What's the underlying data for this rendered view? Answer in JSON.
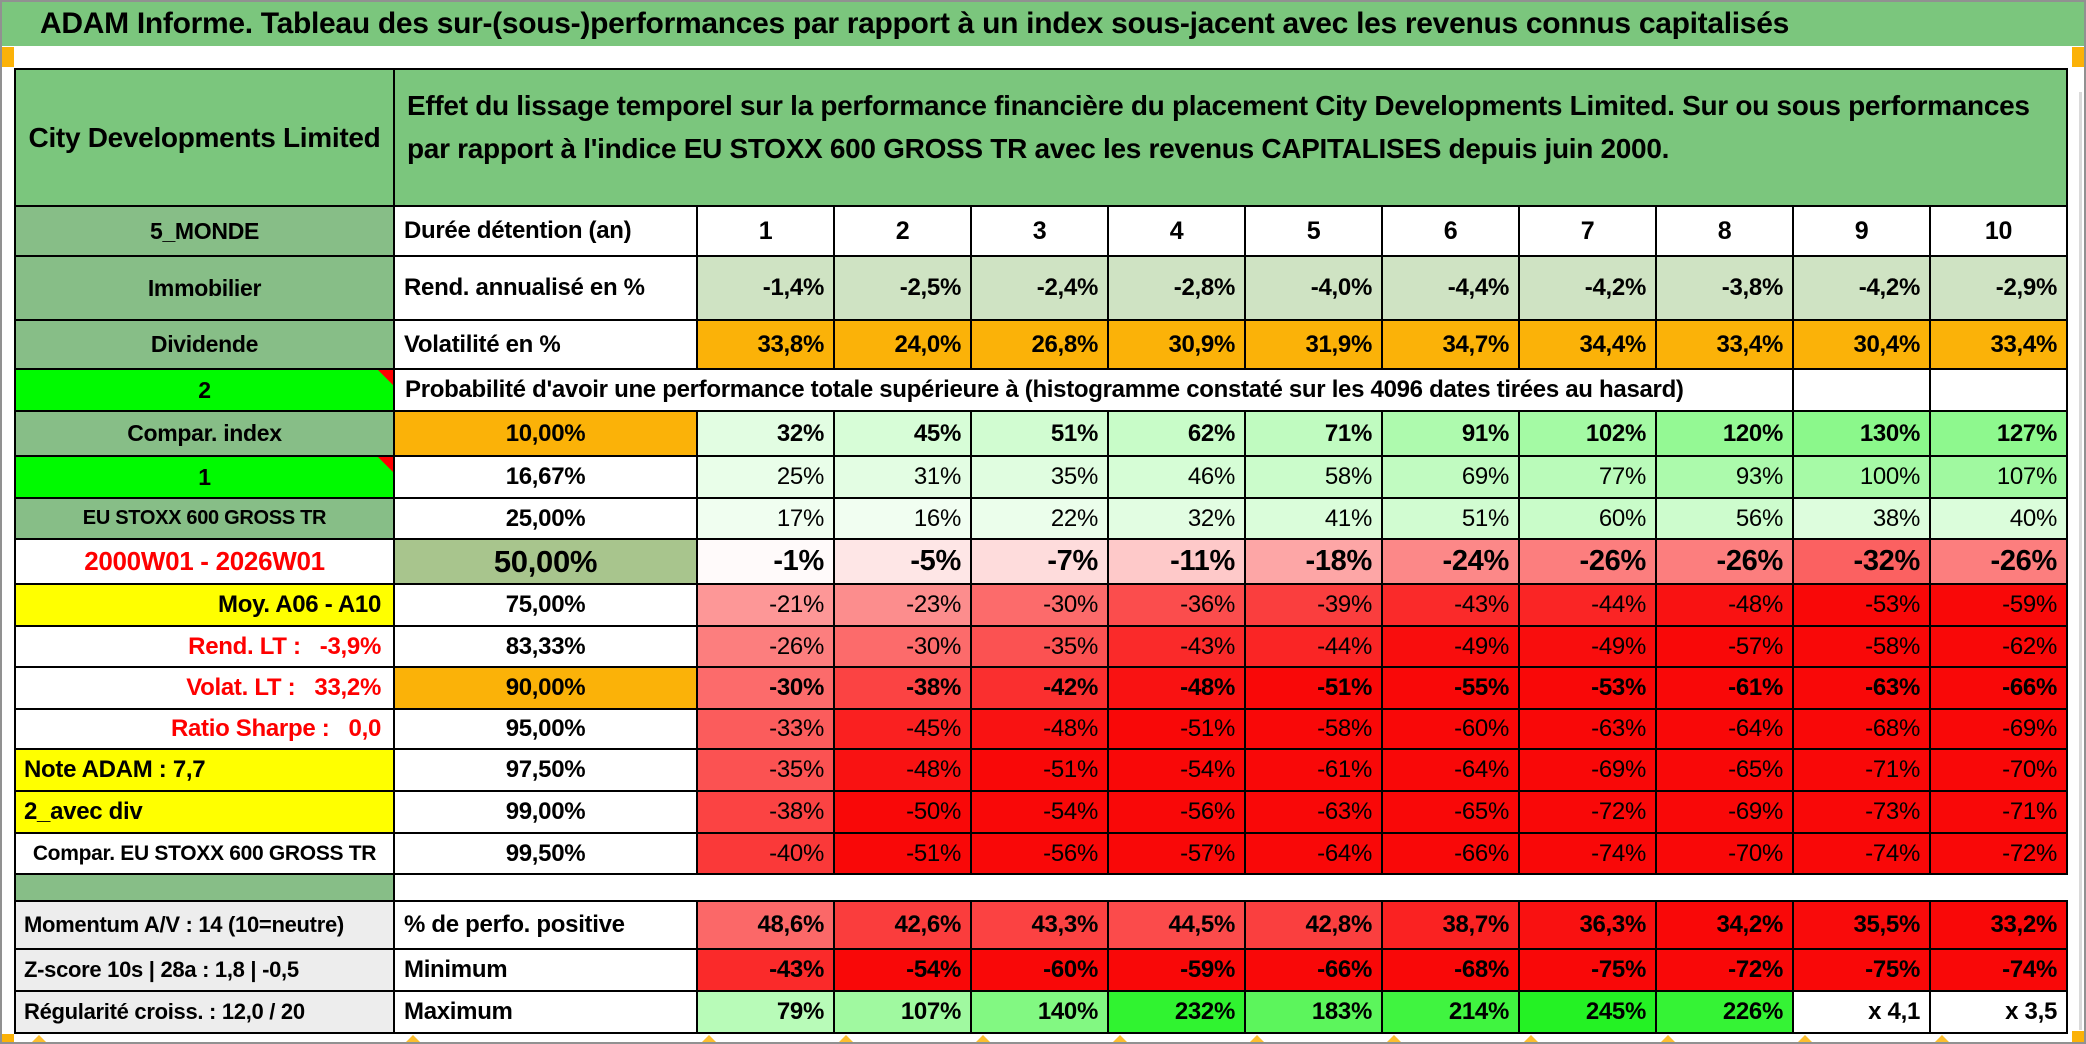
{
  "title": "ADAM Informe. Tableau des sur-(sous-)performances par rapport à un index sous-jacent avec les revenus connus capitalisés",
  "header": {
    "company": "City Developments Limited",
    "description": "Effet du lissage temporel sur la performance financière du placement City Developments Limited. Sur ou sous performances par rapport à l'indice EU STOXX 600 GROSS TR avec les revenus CAPITALISES depuis juin 2000."
  },
  "columns": [
    "1",
    "2",
    "3",
    "4",
    "5",
    "6",
    "7",
    "8",
    "9",
    "10"
  ],
  "rows": {
    "duration": {
      "a": "5_MONDE",
      "b": "Durée détention (an)"
    },
    "rend_annualise": {
      "a": "Immobilier",
      "b": "Rend. annualisé en %",
      "display": [
        "-1,4%",
        "-2,5%",
        "-2,4%",
        "-2,8%",
        "-4,0%",
        "-4,4%",
        "-4,2%",
        "-3,8%",
        "-4,2%",
        "-2,9%"
      ]
    },
    "volatilite": {
      "a": "Dividende",
      "b": "Volatilité en %",
      "display": [
        "33,8%",
        "24,0%",
        "26,8%",
        "30,9%",
        "31,9%",
        "34,7%",
        "34,4%",
        "33,4%",
        "30,4%",
        "33,4%"
      ]
    },
    "probabilite": {
      "a": "2",
      "text": "Probabilité d'avoir une performance totale supérieure à (histogramme constaté sur les 4096 dates tirées au hasard)"
    },
    "percentiles": [
      {
        "id": "p10",
        "a": "Compar. index",
        "pct": "10,00%",
        "values": [
          32,
          45,
          51,
          62,
          71,
          91,
          102,
          120,
          130,
          127
        ]
      },
      {
        "id": "p16",
        "a": "1",
        "pct": "16,67%",
        "values": [
          25,
          31,
          35,
          46,
          58,
          69,
          77,
          93,
          100,
          107
        ]
      },
      {
        "id": "p25",
        "a": "EU STOXX 600 GROSS TR",
        "pct": "25,00%",
        "values": [
          17,
          16,
          22,
          32,
          41,
          51,
          60,
          56,
          38,
          40
        ]
      },
      {
        "id": "p50",
        "a": "2000W01 - 2026W01",
        "pct": "50,00%",
        "values": [
          -1,
          -5,
          -7,
          -11,
          -18,
          -24,
          -26,
          -26,
          -32,
          -26
        ]
      },
      {
        "id": "p75",
        "a": "Moy. A06 - A10",
        "pct": "75,00%",
        "values": [
          -21,
          -23,
          -30,
          -36,
          -39,
          -43,
          -44,
          -48,
          -53,
          -59
        ]
      },
      {
        "id": "p83",
        "a": "Rend. LT :   -3,9%",
        "pct": "83,33%",
        "values": [
          -26,
          -30,
          -35,
          -43,
          -44,
          -49,
          -49,
          -57,
          -58,
          -62
        ]
      },
      {
        "id": "p90",
        "a": "Volat. LT :   33,2%",
        "pct": "90,00%",
        "values": [
          -30,
          -38,
          -42,
          -48,
          -51,
          -55,
          -53,
          -61,
          -63,
          -66
        ]
      },
      {
        "id": "p95",
        "a": "Ratio Sharpe :   0,0",
        "pct": "95,00%",
        "values": [
          -33,
          -45,
          -48,
          -51,
          -58,
          -60,
          -63,
          -64,
          -68,
          -69
        ]
      },
      {
        "id": "p975",
        "a": "Note ADAM : 7,7",
        "pct": "97,50%",
        "values": [
          -35,
          -48,
          -51,
          -54,
          -61,
          -64,
          -69,
          -65,
          -71,
          -70
        ]
      },
      {
        "id": "p99",
        "a": "2_avec div",
        "pct": "99,00%",
        "values": [
          -38,
          -50,
          -54,
          -56,
          -63,
          -65,
          -72,
          -69,
          -73,
          -71
        ]
      },
      {
        "id": "p995",
        "a": "Compar. EU STOXX 600 GROSS TR",
        "pct": "99,50%",
        "values": [
          -40,
          -51,
          -56,
          -57,
          -64,
          -66,
          -74,
          -70,
          -74,
          -72
        ]
      }
    ],
    "bottom": [
      {
        "id": "perfo",
        "a": "Momentum A/V : 14 (10=neutre)",
        "b": "% de perfo. positive",
        "display": [
          "48,6%",
          "42,6%",
          "43,3%",
          "44,5%",
          "42,8%",
          "38,7%",
          "36,3%",
          "34,2%",
          "35,5%",
          "33,2%"
        ],
        "values": [
          48.6,
          42.6,
          43.3,
          44.5,
          42.8,
          38.7,
          36.3,
          34.2,
          35.5,
          33.2
        ]
      },
      {
        "id": "minimum",
        "a": "Z-score 10s | 28a : 1,8 | -0,5",
        "b": "Minimum",
        "display": [
          "-43%",
          "-54%",
          "-60%",
          "-59%",
          "-66%",
          "-68%",
          "-75%",
          "-72%",
          "-75%",
          "-74%"
        ],
        "values": [
          -43,
          -54,
          -60,
          -59,
          -66,
          -68,
          -75,
          -72,
          -75,
          -74
        ]
      },
      {
        "id": "maximum",
        "a": "Régularité croiss. : 12,0 / 20",
        "b": "Maximum",
        "display": [
          "79%",
          "107%",
          "140%",
          "232%",
          "183%",
          "214%",
          "245%",
          "226%",
          "x 4,1",
          "x 3,5"
        ],
        "values": [
          79,
          107,
          140,
          232,
          183,
          214,
          245,
          226,
          null,
          null
        ]
      }
    ]
  },
  "colors": {
    "title_green": "#7BC67D",
    "label_green": "#87BE87",
    "bright_green": "#00FA00",
    "orange": "#FBB208",
    "yellow": "#FFFF00",
    "sage_50": "#A8C58D",
    "light_green_row": "#CFE3C3",
    "gray_label": "#EDEDED",
    "red": "#FE0000",
    "marker_orange": "#FCBE2E",
    "heat_green_strong": "#12EC12",
    "heat_red_strong": "#F90808"
  }
}
